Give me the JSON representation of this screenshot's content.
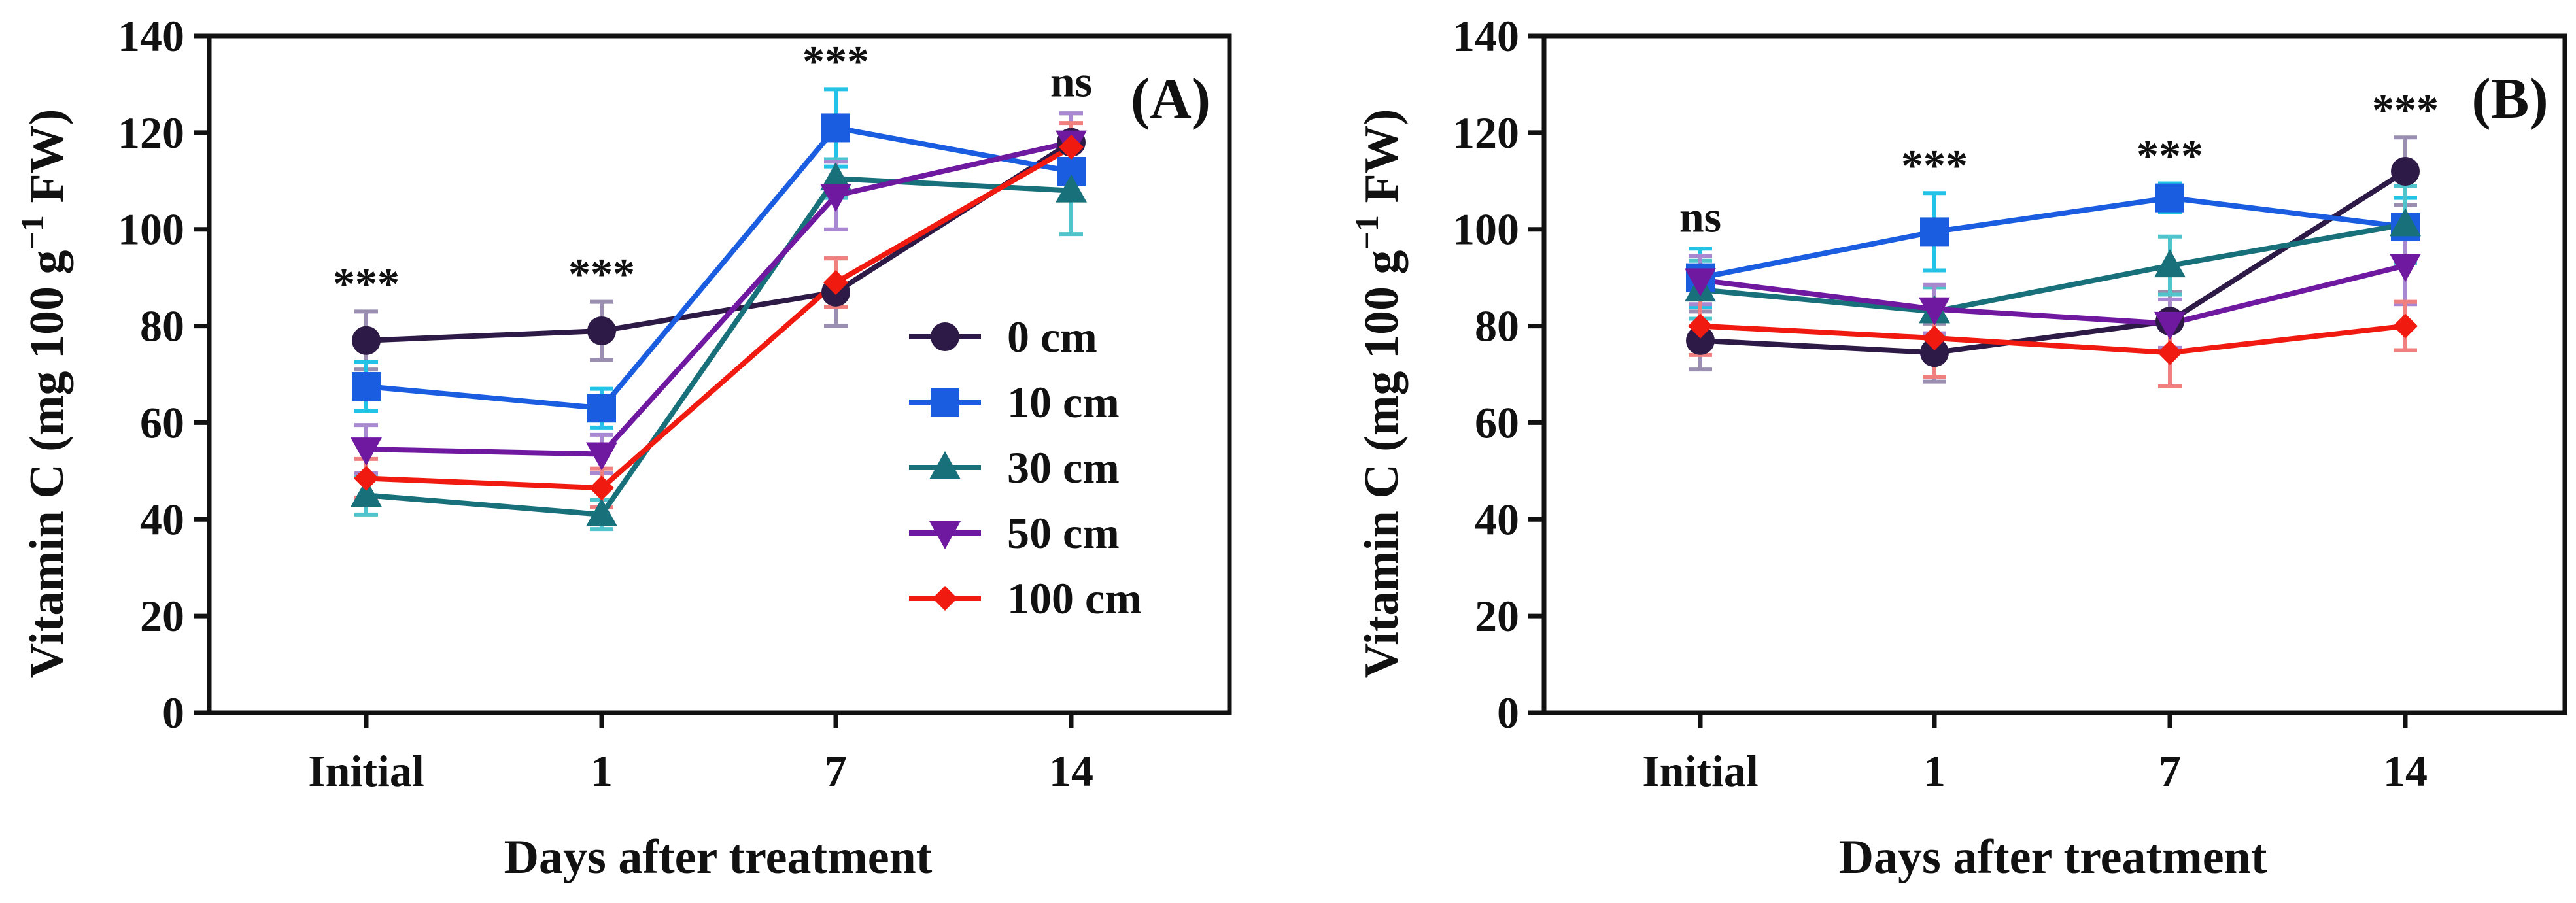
{
  "figure": {
    "series_styles": [
      {
        "name": "0 cm",
        "color": "#2e1a47",
        "err_color": "#9a8fb0",
        "marker": "circle"
      },
      {
        "name": "10 cm",
        "color": "#1a5de0",
        "err_color": "#22c3e6",
        "marker": "square"
      },
      {
        "name": "30 cm",
        "color": "#17707a",
        "err_color": "#4fc4cc",
        "marker": "triangle-up"
      },
      {
        "name": "50 cm",
        "color": "#6f18a0",
        "err_color": "#a888d0",
        "marker": "triangle-down"
      },
      {
        "name": "100 cm",
        "color": "#f01a10",
        "err_color": "#f08080",
        "marker": "diamond"
      }
    ]
  },
  "chart_data": [
    {
      "type": "line",
      "panel_label": "(A)",
      "xlabel": "Days after treatment",
      "ylabel_main": "Vitamin C (mg 100 g",
      "ylabel_sup": "−1",
      "ylabel_tail": " FW)",
      "categories": [
        "Initial",
        "1",
        "7",
        "14"
      ],
      "ylim": [
        0,
        140
      ],
      "yticks": [
        "0",
        "20",
        "40",
        "60",
        "80",
        "100",
        "120",
        "140"
      ],
      "legend_position": "right-center",
      "significance": [
        "***",
        "***",
        "***",
        "ns"
      ],
      "series": [
        {
          "name": "0 cm",
          "values": [
            77,
            79,
            87,
            118
          ],
          "errors": [
            6,
            6,
            7,
            6
          ]
        },
        {
          "name": "10 cm",
          "values": [
            67.5,
            63,
            121,
            112
          ],
          "errors": [
            5,
            4,
            8,
            6
          ]
        },
        {
          "name": "30 cm",
          "values": [
            45,
            41,
            110.5,
            108
          ],
          "errors": [
            4,
            3,
            4,
            9
          ]
        },
        {
          "name": "50 cm",
          "values": [
            54.5,
            53.5,
            107,
            118
          ],
          "errors": [
            5,
            4,
            7,
            6
          ]
        },
        {
          "name": "100 cm",
          "values": [
            48.5,
            46.5,
            89,
            117
          ],
          "errors": [
            4,
            4,
            5,
            5
          ]
        }
      ]
    },
    {
      "type": "line",
      "panel_label": "(B)",
      "xlabel": "Days after treatment",
      "ylabel_main": "Vitamin C (mg 100 g",
      "ylabel_sup": "−1",
      "ylabel_tail": " FW)",
      "categories": [
        "Initial",
        "1",
        "7",
        "14"
      ],
      "ylim": [
        0,
        140
      ],
      "yticks": [
        "0",
        "20",
        "40",
        "60",
        "80",
        "100",
        "120",
        "140"
      ],
      "significance": [
        "ns",
        "***",
        "***",
        "***"
      ],
      "series": [
        {
          "name": "0 cm",
          "values": [
            77,
            74.5,
            81,
            112
          ],
          "errors": [
            6,
            6,
            6,
            7
          ]
        },
        {
          "name": "10 cm",
          "values": [
            90,
            99.5,
            106.5,
            100.5
          ],
          "errors": [
            6,
            8,
            3,
            6
          ]
        },
        {
          "name": "30 cm",
          "values": [
            87.5,
            83,
            92.5,
            101
          ],
          "errors": [
            6,
            5,
            6,
            8
          ]
        },
        {
          "name": "50 cm",
          "values": [
            89.5,
            83.5,
            80.5,
            92.5
          ],
          "errors": [
            5,
            5,
            5,
            8
          ]
        },
        {
          "name": "100 cm",
          "values": [
            80,
            77.5,
            74.5,
            80
          ],
          "errors": [
            6,
            8,
            7,
            5
          ]
        }
      ]
    }
  ]
}
